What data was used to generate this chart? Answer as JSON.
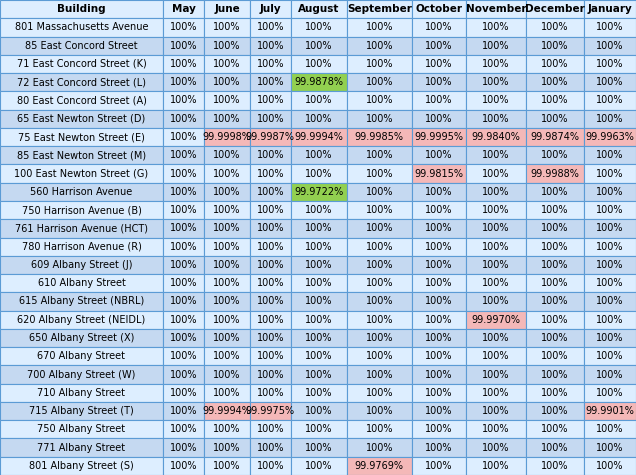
{
  "columns": [
    "Building",
    "May",
    "June",
    "July",
    "August",
    "September",
    "October",
    "November",
    "December",
    "January"
  ],
  "rows": [
    [
      "801 Massachusetts Avenue",
      "100%",
      "100%",
      "100%",
      "100%",
      "100%",
      "100%",
      "100%",
      "100%",
      "100%"
    ],
    [
      "85 East Concord Street",
      "100%",
      "100%",
      "100%",
      "100%",
      "100%",
      "100%",
      "100%",
      "100%",
      "100%"
    ],
    [
      "71 East Concord Street (K)",
      "100%",
      "100%",
      "100%",
      "100%",
      "100%",
      "100%",
      "100%",
      "100%",
      "100%"
    ],
    [
      "72 East Concord Street (L)",
      "100%",
      "100%",
      "100%",
      "99.9878%",
      "100%",
      "100%",
      "100%",
      "100%",
      "100%"
    ],
    [
      "80 East Concord Street (A)",
      "100%",
      "100%",
      "100%",
      "100%",
      "100%",
      "100%",
      "100%",
      "100%",
      "100%"
    ],
    [
      "65 East Newton Street (D)",
      "100%",
      "100%",
      "100%",
      "100%",
      "100%",
      "100%",
      "100%",
      "100%",
      "100%"
    ],
    [
      "75 East Newton Street (E)",
      "100%",
      "99.9998%",
      "99.9987%",
      "99.9994%",
      "99.9985%",
      "99.9995%",
      "99.9840%",
      "99.9874%",
      "99.9963%"
    ],
    [
      "85 East Newton Street (M)",
      "100%",
      "100%",
      "100%",
      "100%",
      "100%",
      "100%",
      "100%",
      "100%",
      "100%"
    ],
    [
      "100 East Newton Street (G)",
      "100%",
      "100%",
      "100%",
      "100%",
      "100%",
      "99.9815%",
      "100%",
      "99.9988%",
      "100%"
    ],
    [
      "560 Harrison Avenue",
      "100%",
      "100%",
      "100%",
      "99.9722%",
      "100%",
      "100%",
      "100%",
      "100%",
      "100%"
    ],
    [
      "750 Harrison Avenue (B)",
      "100%",
      "100%",
      "100%",
      "100%",
      "100%",
      "100%",
      "100%",
      "100%",
      "100%"
    ],
    [
      "761 Harrison Avenue (HCT)",
      "100%",
      "100%",
      "100%",
      "100%",
      "100%",
      "100%",
      "100%",
      "100%",
      "100%"
    ],
    [
      "780 Harrison Avenue (R)",
      "100%",
      "100%",
      "100%",
      "100%",
      "100%",
      "100%",
      "100%",
      "100%",
      "100%"
    ],
    [
      "609 Albany Street (J)",
      "100%",
      "100%",
      "100%",
      "100%",
      "100%",
      "100%",
      "100%",
      "100%",
      "100%"
    ],
    [
      "610 Albany Street",
      "100%",
      "100%",
      "100%",
      "100%",
      "100%",
      "100%",
      "100%",
      "100%",
      "100%"
    ],
    [
      "615 Albany Street (NBRL)",
      "100%",
      "100%",
      "100%",
      "100%",
      "100%",
      "100%",
      "100%",
      "100%",
      "100%"
    ],
    [
      "620 Albany Street (NEIDL)",
      "100%",
      "100%",
      "100%",
      "100%",
      "100%",
      "100%",
      "99.9970%",
      "100%",
      "100%"
    ],
    [
      "650 Albany Street (X)",
      "100%",
      "100%",
      "100%",
      "100%",
      "100%",
      "100%",
      "100%",
      "100%",
      "100%"
    ],
    [
      "670 Albany Street",
      "100%",
      "100%",
      "100%",
      "100%",
      "100%",
      "100%",
      "100%",
      "100%",
      "100%"
    ],
    [
      "700 Albany Street (W)",
      "100%",
      "100%",
      "100%",
      "100%",
      "100%",
      "100%",
      "100%",
      "100%",
      "100%"
    ],
    [
      "710 Albany Street",
      "100%",
      "100%",
      "100%",
      "100%",
      "100%",
      "100%",
      "100%",
      "100%",
      "100%"
    ],
    [
      "715 Albany Street (T)",
      "100%",
      "99.9994%",
      "99.9975%",
      "100%",
      "100%",
      "100%",
      "100%",
      "100%",
      "99.9901%"
    ],
    [
      "750 Albany Street",
      "100%",
      "100%",
      "100%",
      "100%",
      "100%",
      "100%",
      "100%",
      "100%",
      "100%"
    ],
    [
      "771 Albany Street",
      "100%",
      "100%",
      "100%",
      "100%",
      "100%",
      "100%",
      "100%",
      "100%",
      "100%"
    ],
    [
      "801 Albany Street (S)",
      "100%",
      "100%",
      "100%",
      "100%",
      "99.9769%",
      "100%",
      "100%",
      "100%",
      "100%"
    ]
  ],
  "cell_colors": {
    "3,4": "#92D050",
    "6,2": "#F4B8B8",
    "6,3": "#F4B8B8",
    "6,4": "#F4B8B8",
    "6,5": "#F4B8B8",
    "6,6": "#F4B8B8",
    "6,7": "#F4B8B8",
    "6,8": "#F4B8B8",
    "6,9": "#F4B8B8",
    "8,6": "#F4B8B8",
    "8,8": "#F4B8B8",
    "9,4": "#92D050",
    "16,7": "#F4B8B8",
    "21,2": "#F4B8B8",
    "21,3": "#F4B8B8",
    "21,9": "#F4B8B8",
    "24,5": "#F4B8B8"
  },
  "header_bg": "#DDEEFF",
  "header_text": "#000000",
  "row_bg_light": "#DDEEFF",
  "row_bg_dark": "#C5D9F1",
  "cell_text": "#000000",
  "border_color": "#5B9BD5",
  "fig_bg": "#FFFFFF",
  "col_widths_rel": [
    2.05,
    0.52,
    0.57,
    0.52,
    0.7,
    0.82,
    0.68,
    0.76,
    0.72,
    0.66
  ],
  "header_fontsize": 7.5,
  "cell_fontsize": 7.0,
  "fig_width": 6.36,
  "fig_height": 4.75,
  "dpi": 100
}
